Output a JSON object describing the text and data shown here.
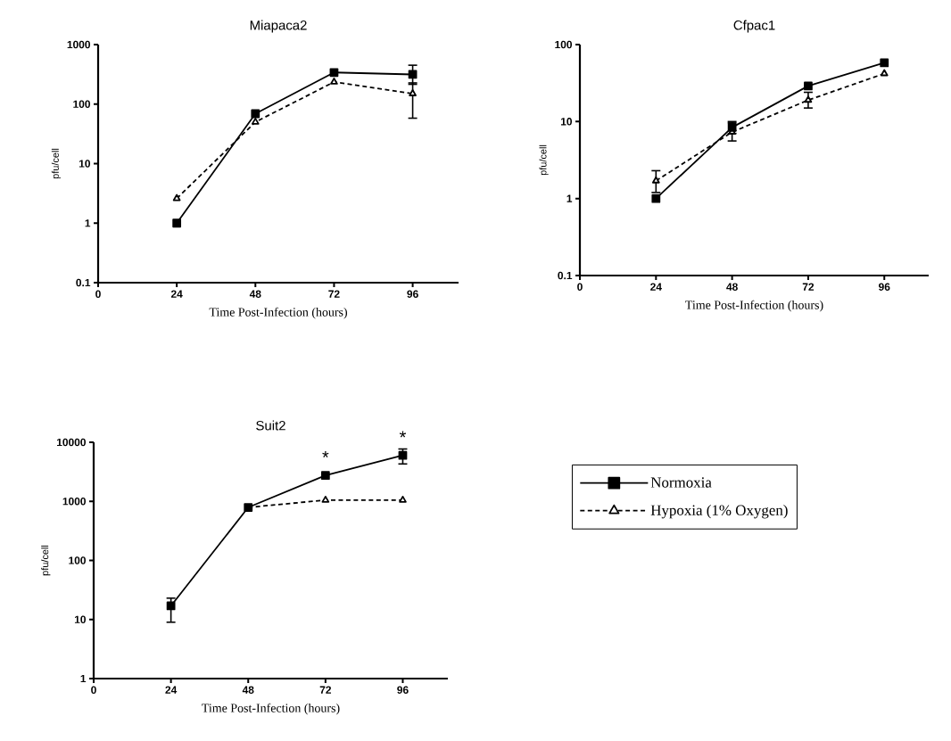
{
  "chart_data": [
    {
      "type": "line",
      "title": "Miapaca2",
      "xlabel": "Time Post-Infection (hours)",
      "ylabel": "pfu/cell",
      "log": "y",
      "xlim": [
        0,
        110
      ],
      "xticks": [
        0,
        24,
        48,
        72,
        96
      ],
      "ylim": [
        0.1,
        1000
      ],
      "yticks": [
        0.1,
        1,
        10,
        100,
        1000
      ],
      "x": [
        24,
        48,
        72,
        96
      ],
      "series": [
        {
          "color": "#000000",
          "marker": "square",
          "line_style": "solid",
          "values": [
            1,
            69,
            340,
            315
          ],
          "errors": [
            null,
            null,
            null,
            [
              215,
              450
            ]
          ]
        },
        {
          "color": "#000000",
          "marker": "triangle",
          "line_style": "dashed",
          "values": [
            2.6,
            50,
            235,
            150
          ],
          "errors": [
            null,
            null,
            null,
            [
              58,
              227
            ]
          ]
        }
      ]
    },
    {
      "type": "line",
      "title": "Cfpac1",
      "xlabel": "Time Post-Infection (hours)",
      "ylabel": "pfu/cell",
      "log": "y",
      "xlim": [
        0,
        110
      ],
      "xticks": [
        0,
        24,
        48,
        72,
        96
      ],
      "ylim": [
        0.1,
        100
      ],
      "yticks": [
        0.1,
        1,
        10,
        100
      ],
      "x": [
        24,
        48,
        72,
        96
      ],
      "series": [
        {
          "color": "#000000",
          "marker": "square",
          "line_style": "solid",
          "values": [
            1,
            8.4,
            29,
            58
          ],
          "errors": [
            null,
            [
              7,
              10
            ],
            null,
            null
          ]
        },
        {
          "color": "#000000",
          "marker": "triangle",
          "line_style": "dashed",
          "values": [
            1.7,
            7.3,
            19,
            42
          ],
          "errors": [
            [
              1.2,
              2.3
            ],
            [
              5.6,
              9.6
            ],
            [
              15,
              24
            ],
            null
          ]
        }
      ]
    },
    {
      "type": "line",
      "title": "Suit2",
      "xlabel": "Time Post-Infection (hours)",
      "ylabel": "pfu/cell",
      "log": "y",
      "xlim": [
        0,
        110
      ],
      "xticks": [
        0,
        24,
        48,
        72,
        96
      ],
      "ylim": [
        1,
        10000
      ],
      "yticks": [
        1,
        10,
        100,
        1000,
        10000
      ],
      "x": [
        24,
        48,
        72,
        96
      ],
      "legend": "right",
      "annotations": [
        {
          "text": "*",
          "x": 72,
          "y": 2750
        },
        {
          "text": "*",
          "x": 96,
          "y": 6000
        }
      ],
      "series": [
        {
          "name": "Normoxia",
          "color": "#000000",
          "marker": "square",
          "line_style": "solid",
          "values": [
            17,
            790,
            2750,
            6000
          ],
          "errors": [
            [
              9,
              23
            ],
            null,
            null,
            [
              4300,
              7700
            ]
          ]
        },
        {
          "name": "Hypoxia (1% Oxygen)",
          "color": "#000000",
          "marker": "triangle",
          "line_style": "dashed",
          "values": [
            null,
            790,
            1050,
            1050
          ]
        }
      ]
    }
  ]
}
